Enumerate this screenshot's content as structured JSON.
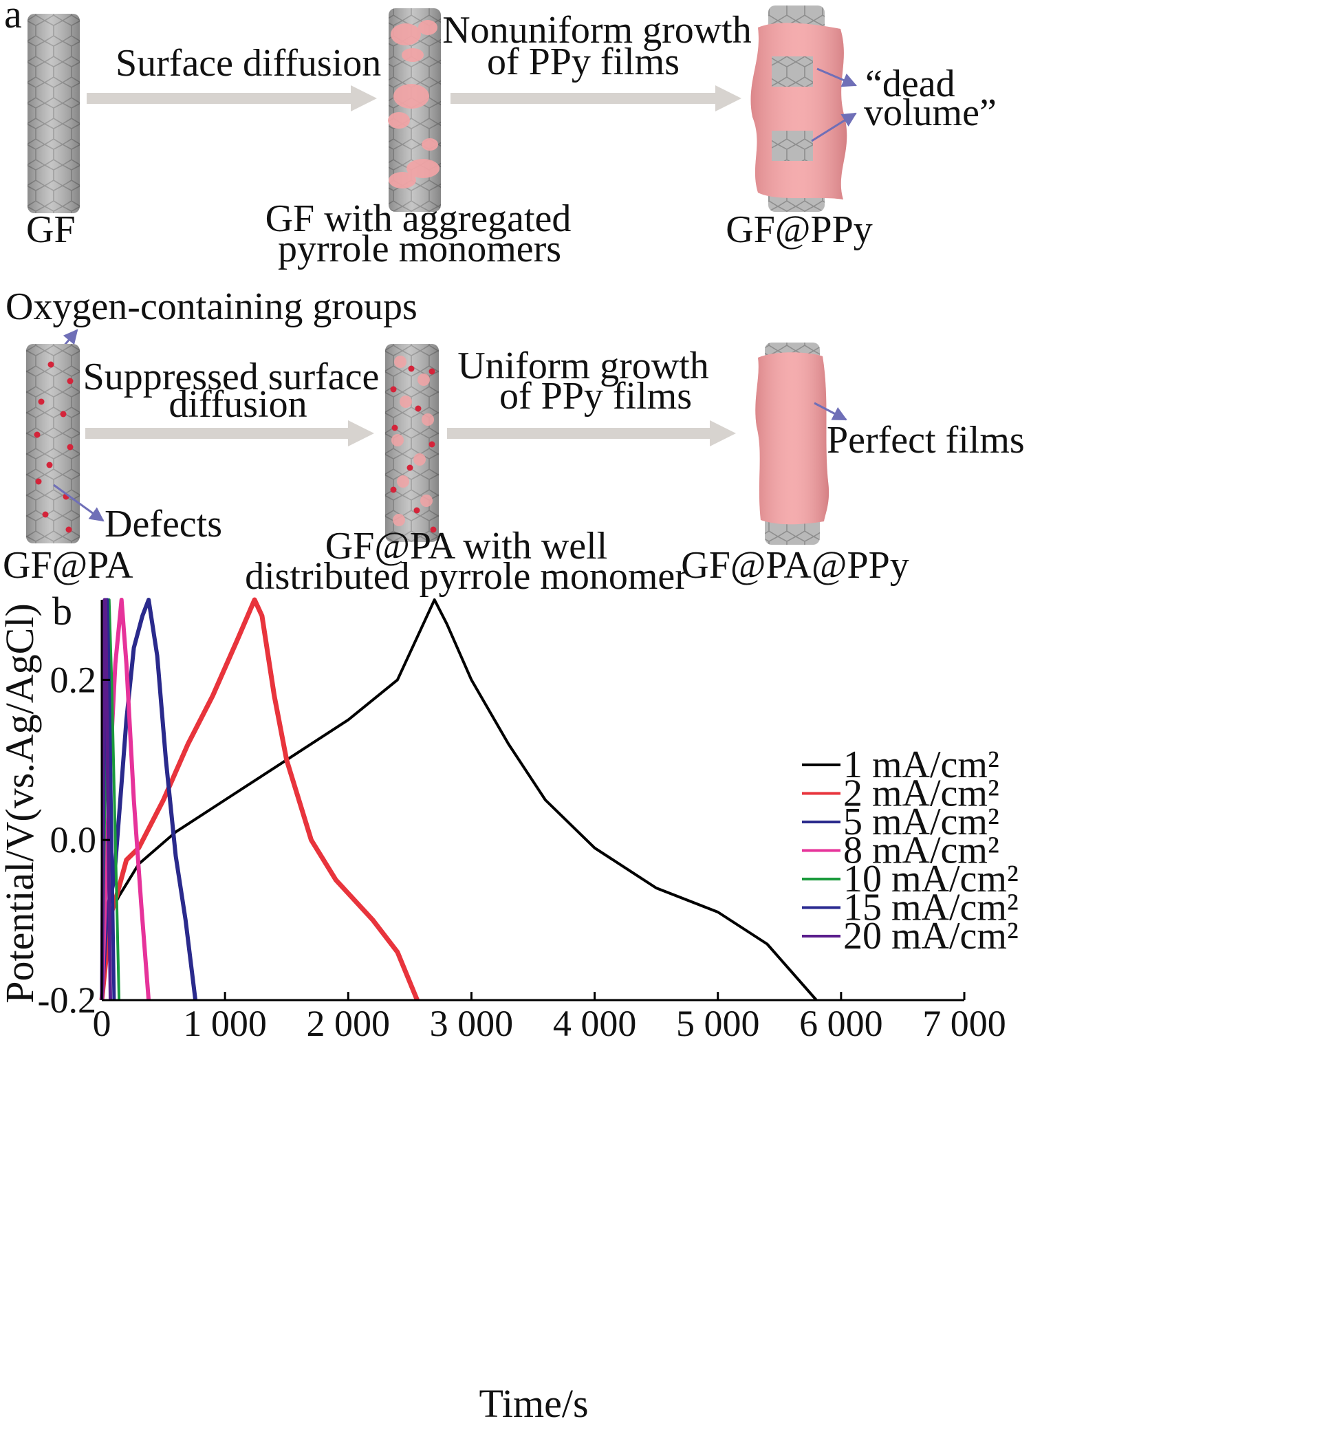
{
  "panel_a": {
    "label": "a",
    "row1": {
      "fiber1_label": "GF",
      "arrow1_label": "Surface diffusion",
      "fiber2_label_lines": [
        "GF with aggregated",
        "pyrrole monomers"
      ],
      "arrow2_label_lines": [
        "Nonuniform growth",
        "of PPy films"
      ],
      "fiber3_label": "GF@PPy",
      "callout_lines": [
        "“dead",
        "volume”"
      ]
    },
    "row2": {
      "top_callout": "Oxygen-containing groups",
      "defects_callout": "Defects",
      "fiber1_label": "GF@PA",
      "arrow1_label_lines": [
        "Suppressed surface",
        "diffusion"
      ],
      "fiber2_label_lines": [
        "GF@PA with well",
        "distributed pyrrole monomer"
      ],
      "arrow2_label_lines": [
        "Uniform growth",
        "of PPy films"
      ],
      "fiber3_label": "GF@PA@PPy",
      "callout": "Perfect films"
    },
    "colors": {
      "fiber": "#b9b9b9",
      "ppy": "#f2a4a6",
      "defect": "#d4243a",
      "arrow": "#d7d3cf",
      "callout_arrow": "#6f6fb7"
    }
  },
  "chart_data": {
    "panel_label": "b",
    "type": "line",
    "xlabel": "Time/s",
    "ylabel": "Potential/V(vs.Ag/AgCl)",
    "xlim": [
      0,
      7000
    ],
    "ylim": [
      -0.2,
      0.3
    ],
    "xticks": [
      0,
      1000,
      2000,
      3000,
      4000,
      5000,
      6000,
      7000
    ],
    "xtick_labels": [
      "0",
      "1 000",
      "2 000",
      "3 000",
      "4 000",
      "5 000",
      "6 000",
      "7 000"
    ],
    "yticks": [
      -0.2,
      0.0,
      0.2
    ],
    "ytick_labels": [
      "-0.2",
      "0.0",
      "0.2"
    ],
    "legend_position": "right",
    "series": [
      {
        "name": "1 mA/cm²",
        "color": "#000000",
        "points": [
          [
            0,
            -0.2
          ],
          [
            60,
            -0.12
          ],
          [
            90,
            -0.085
          ],
          [
            140,
            -0.07
          ],
          [
            300,
            -0.03
          ],
          [
            600,
            0.01
          ],
          [
            1000,
            0.05
          ],
          [
            1500,
            0.1
          ],
          [
            2000,
            0.15
          ],
          [
            2400,
            0.2
          ],
          [
            2700,
            0.3
          ],
          [
            2800,
            0.27
          ],
          [
            3000,
            0.2
          ],
          [
            3300,
            0.12
          ],
          [
            3600,
            0.05
          ],
          [
            4000,
            -0.01
          ],
          [
            4500,
            -0.06
          ],
          [
            5000,
            -0.09
          ],
          [
            5400,
            -0.13
          ],
          [
            5800,
            -0.2
          ]
        ]
      },
      {
        "name": "2 mA/cm²",
        "color": "#e8343c",
        "points": [
          [
            0,
            -0.2
          ],
          [
            40,
            -0.14
          ],
          [
            80,
            -0.09
          ],
          [
            120,
            -0.07
          ],
          [
            200,
            -0.025
          ],
          [
            300,
            -0.01
          ],
          [
            500,
            0.05
          ],
          [
            700,
            0.12
          ],
          [
            900,
            0.18
          ],
          [
            1100,
            0.25
          ],
          [
            1240,
            0.3
          ],
          [
            1300,
            0.28
          ],
          [
            1400,
            0.18
          ],
          [
            1500,
            0.1
          ],
          [
            1700,
            0.0
          ],
          [
            1900,
            -0.05
          ],
          [
            2200,
            -0.1
          ],
          [
            2400,
            -0.14
          ],
          [
            2560,
            -0.2
          ]
        ]
      },
      {
        "name": "5 mA/cm²",
        "color": "#2a2a8c",
        "points": [
          [
            0,
            -0.2
          ],
          [
            40,
            -0.09
          ],
          [
            100,
            -0.05
          ],
          [
            150,
            0.05
          ],
          [
            200,
            0.15
          ],
          [
            260,
            0.24
          ],
          [
            330,
            0.28
          ],
          [
            380,
            0.3
          ],
          [
            450,
            0.23
          ],
          [
            520,
            0.1
          ],
          [
            600,
            -0.02
          ],
          [
            680,
            -0.1
          ],
          [
            760,
            -0.2
          ]
        ]
      },
      {
        "name": "8 mA/cm²",
        "color": "#e6339a",
        "points": [
          [
            0,
            -0.2
          ],
          [
            30,
            -0.06
          ],
          [
            70,
            0.1
          ],
          [
            110,
            0.22
          ],
          [
            160,
            0.3
          ],
          [
            200,
            0.22
          ],
          [
            260,
            0.05
          ],
          [
            320,
            -0.08
          ],
          [
            380,
            -0.2
          ]
        ]
      },
      {
        "name": "10 mA/cm²",
        "color": "#1a9a3c",
        "points": [
          [
            0,
            -0.2
          ],
          [
            20,
            0.0
          ],
          [
            40,
            0.2
          ],
          [
            60,
            0.3
          ],
          [
            80,
            0.2
          ],
          [
            110,
            0.0
          ],
          [
            140,
            -0.2
          ]
        ]
      },
      {
        "name": "15 mA/cm²",
        "color": "#2a2a90",
        "points": [
          [
            0,
            -0.2
          ],
          [
            15,
            0.05
          ],
          [
            30,
            0.3
          ],
          [
            45,
            0.3
          ],
          [
            70,
            0.1
          ],
          [
            100,
            -0.2
          ]
        ]
      },
      {
        "name": "20 mA/cm²",
        "color": "#5a1d8c",
        "points": [
          [
            0,
            -0.2
          ],
          [
            10,
            0.1
          ],
          [
            22,
            0.3
          ],
          [
            30,
            0.3
          ],
          [
            50,
            0.05
          ],
          [
            70,
            -0.2
          ]
        ]
      }
    ]
  }
}
